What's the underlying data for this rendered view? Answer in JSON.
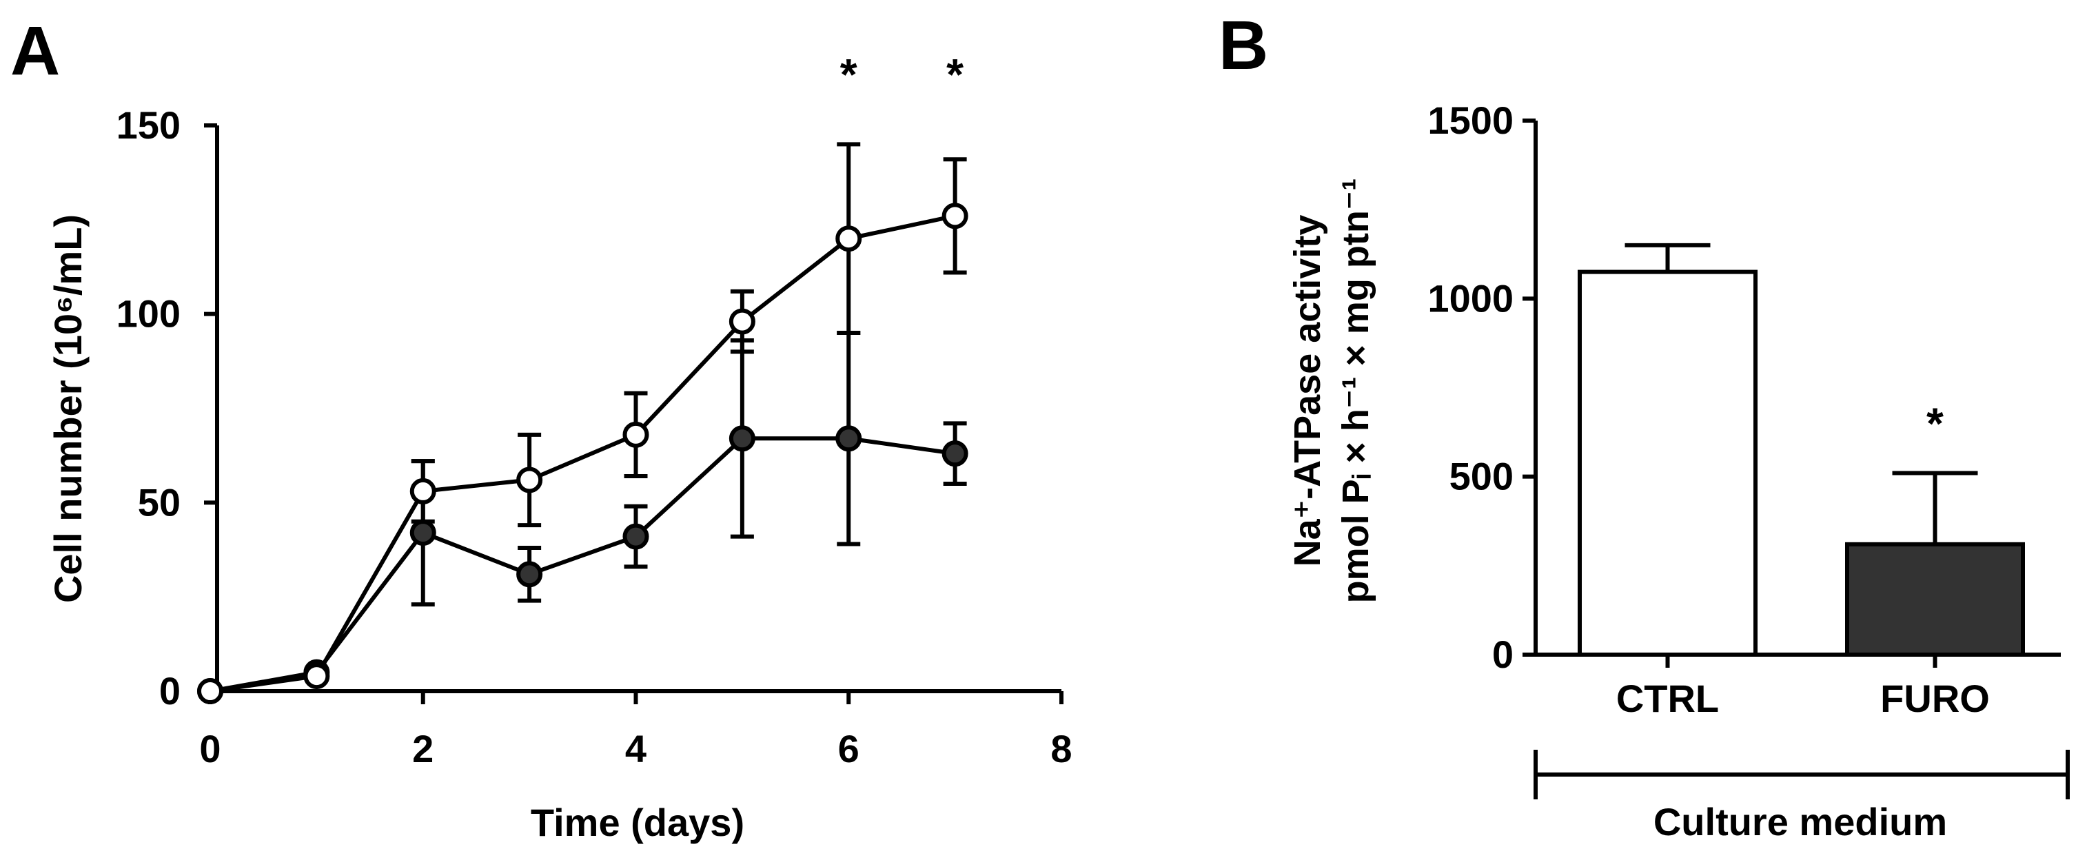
{
  "chart_data": [
    {
      "panel": "A",
      "type": "line",
      "xlabel": "Time (days)",
      "ylabel": "Cell number (10⁶/mL)",
      "xlim": [
        0,
        8
      ],
      "ylim": [
        0,
        150
      ],
      "xticks": [
        0,
        2,
        4,
        6,
        8
      ],
      "yticks": [
        0,
        50,
        100,
        150
      ],
      "x": [
        0,
        1,
        2,
        3,
        4,
        5,
        6,
        7
      ],
      "series": [
        {
          "name": "CTRL",
          "marker": "open-circle",
          "values": [
            0,
            4,
            53,
            56,
            68,
            98,
            120,
            126
          ],
          "error": [
            0,
            1,
            8,
            12,
            11,
            8,
            25,
            15
          ]
        },
        {
          "name": "FURO",
          "marker": "filled-circle",
          "values": [
            0,
            5,
            42,
            31,
            41,
            67,
            67,
            63
          ],
          "error": [
            0,
            1,
            19,
            7,
            8,
            26,
            28,
            8
          ]
        }
      ],
      "annotations": [
        {
          "x": 6,
          "text": "*"
        },
        {
          "x": 7,
          "text": "*"
        }
      ]
    },
    {
      "panel": "B",
      "type": "bar",
      "ylabel_line1": "Na⁺-ATPase activity",
      "ylabel_line2": "pmol Pᵢ × h⁻¹ × mg ptn⁻¹",
      "xlabel": "Culture medium",
      "ylim": [
        0,
        1500
      ],
      "yticks": [
        0,
        500,
        1000,
        1500
      ],
      "categories": [
        "CTRL",
        "FURO"
      ],
      "values": [
        1075,
        310
      ],
      "error": [
        75,
        200
      ],
      "fills": [
        "#ffffff",
        "#333333"
      ],
      "annotations": [
        {
          "category": "FURO",
          "text": "*"
        }
      ]
    }
  ],
  "colors": {
    "axis": "#000000",
    "filled_marker": "#333333",
    "open_marker": "#ffffff"
  }
}
